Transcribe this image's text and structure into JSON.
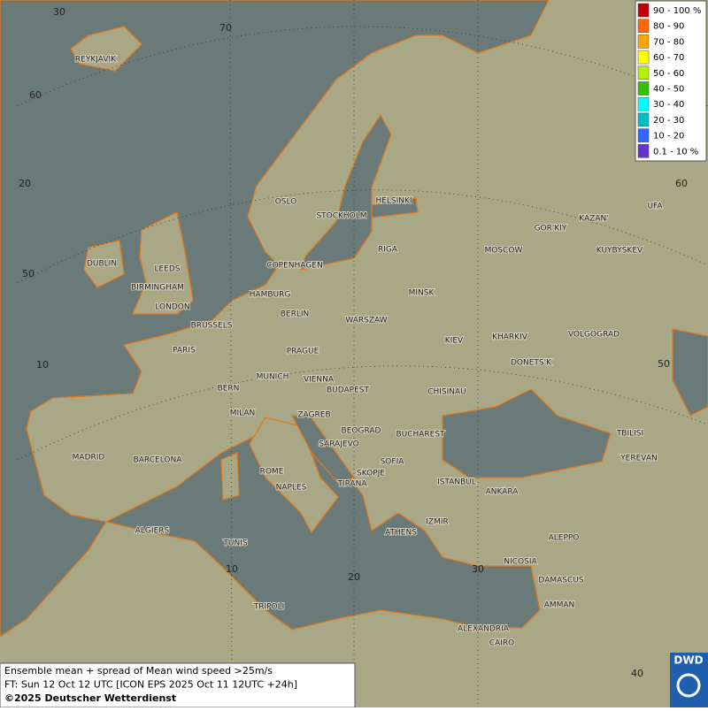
{
  "map": {
    "cities": [
      "REYKJAVIK",
      "OSLO",
      "STOCKHOLM",
      "HELSINKI",
      "GOR'KIY",
      "KAZAN'",
      "UFA",
      "MOSCOW",
      "KUYBYSKEV",
      "DUBLIN",
      "LEEDS",
      "BIRMINGHAM",
      "LONDON",
      "COPENHAGEN",
      "RIGA",
      "HAMBURG",
      "MINSK",
      "BERLIN",
      "BRUSSELS",
      "WARSZAW",
      "KIEV",
      "KHARKIV",
      "VOLGOGRAD",
      "PARIS",
      "PRAGUE",
      "DONETS'K",
      "MUNICH",
      "VIENNA",
      "BERN",
      "BUDAPEST",
      "CHISINAU",
      "MILAN",
      "ZAGREB",
      "BEOGRAD",
      "BUCHAREST",
      "TBILISI",
      "MADRID",
      "BARCELONA",
      "SARAJEVO",
      "SOFIA",
      "YEREVAN",
      "ROME",
      "SKOPJE",
      "ISTANBUL",
      "NAPLES",
      "TIRANA",
      "ANKARA",
      "ALGIERS",
      "IZMIR",
      "ATHENS",
      "ALEPPO",
      "TUNIS",
      "NICOSIA",
      "DAMASCUS",
      "TRIPOLI",
      "AMMAN",
      "ALEXANDRIA",
      "CAIRO"
    ],
    "graticule_labels": [
      "30",
      "70",
      "60",
      "20",
      "50",
      "10",
      "60",
      "50",
      "10",
      "20",
      "30",
      "40"
    ],
    "legend": {
      "items": [
        {
          "label": "90 - 100 %",
          "color": "#c00000"
        },
        {
          "label": "80 - 90",
          "color": "#ff6a00"
        },
        {
          "label": "70 - 80",
          "color": "#ffa500"
        },
        {
          "label": "60 - 70",
          "color": "#ffff00"
        },
        {
          "label": "50 - 60",
          "color": "#b4f000"
        },
        {
          "label": "40 - 50",
          "color": "#33c000"
        },
        {
          "label": "30 - 40",
          "color": "#00ffff"
        },
        {
          "label": "20 - 30",
          "color": "#00c0c0"
        },
        {
          "label": "10 - 20",
          "color": "#3366ff"
        },
        {
          "label": "0.1 - 10 %",
          "color": "#6633cc"
        }
      ]
    }
  },
  "footer": {
    "lines": [
      "Ensemble mean + spread of Mean wind speed >25m/s",
      "FT: Sun 12 Oct 12 UTC [ICON EPS 2025 Oct 11 12UTC +24h]",
      "©2025 Deutscher Wetterdienst"
    ]
  },
  "logo": "DWD"
}
